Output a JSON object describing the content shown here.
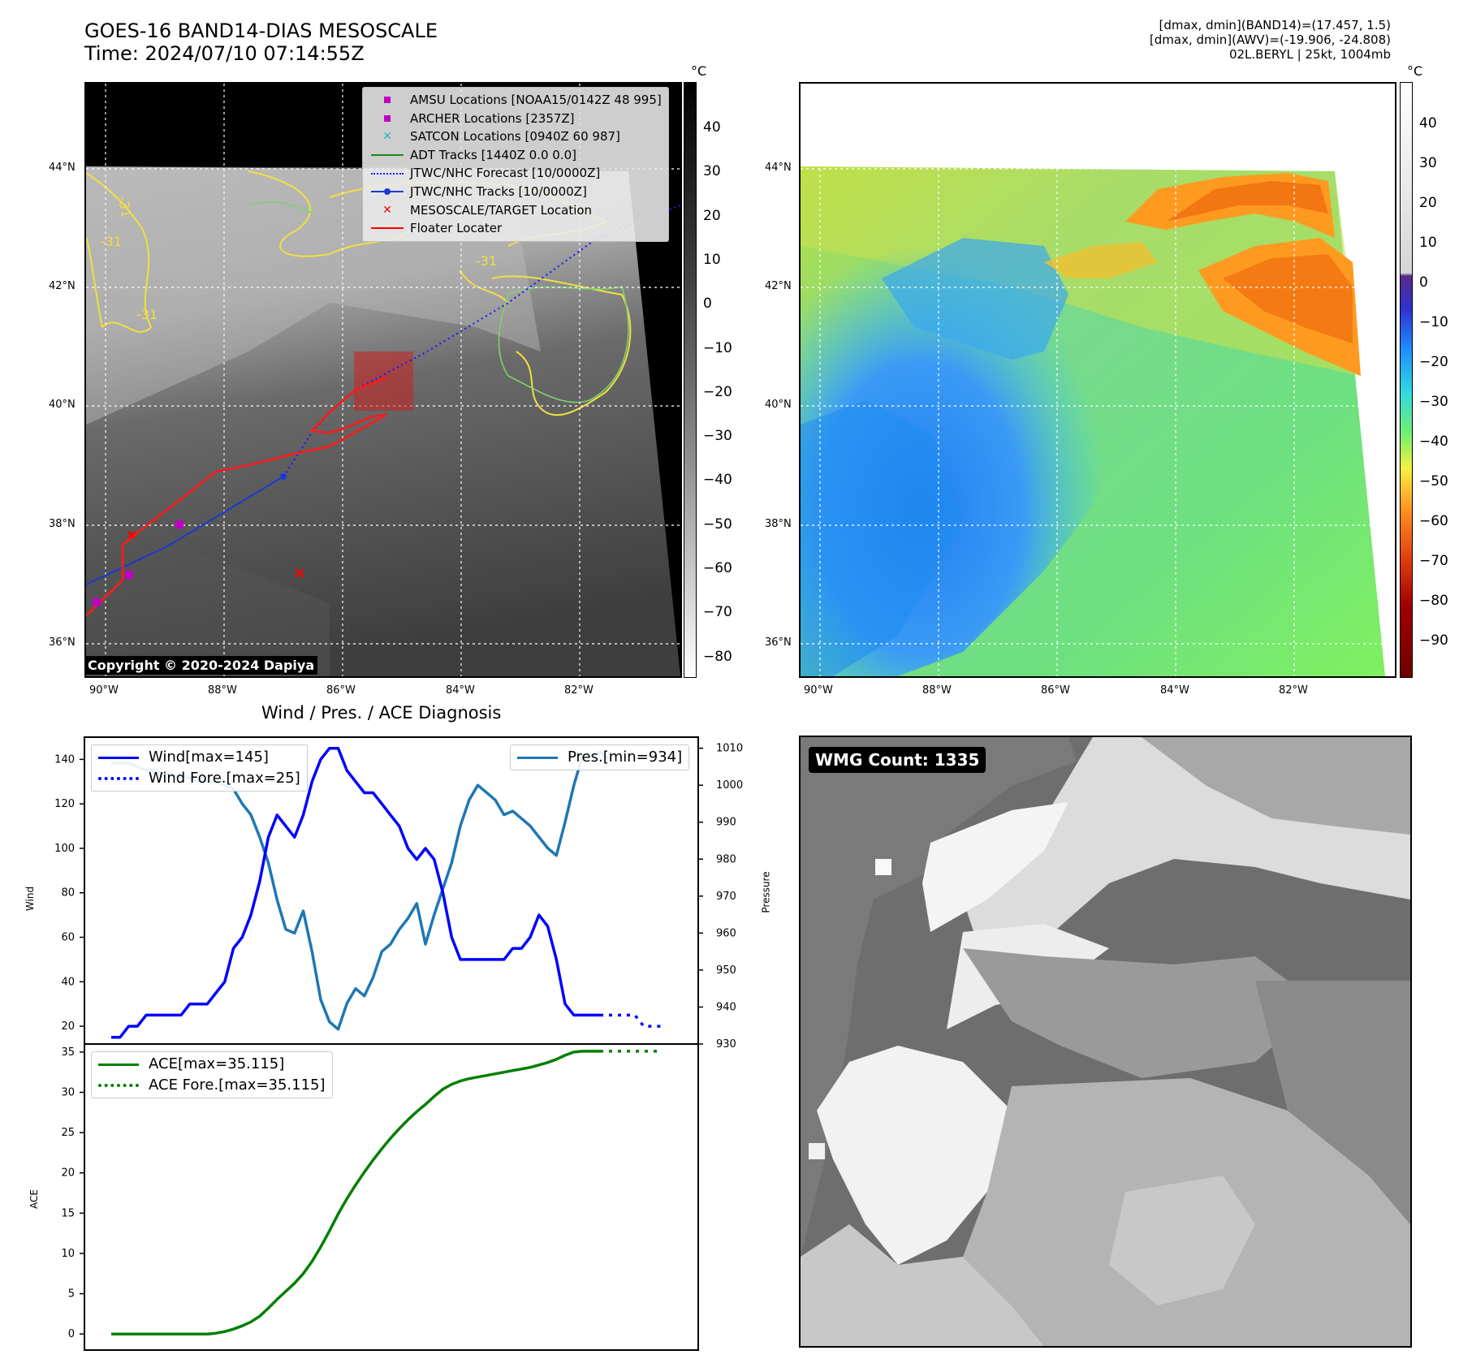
{
  "header": {
    "title_line1": "GOES-16 BAND14-DIAS MESOSCALE",
    "title_line2": "Time: 2024/07/10 07:14:55Z",
    "info_line1": "[dmax, dmin](BAND14)=(17.457, 1.5)",
    "info_line2": "[dmax, dmin](AWV)=(-19.906, -24.808)",
    "info_line3": "02L.BERYL | 25kt, 1004mb"
  },
  "map": {
    "lat_labels": [
      "44°N",
      "42°N",
      "40°N",
      "38°N",
      "36°N"
    ],
    "lon_labels": [
      "90°W",
      "88°W",
      "86°W",
      "84°W",
      "82°W"
    ],
    "contour_labels": [
      "-31",
      "-31",
      "-31",
      "-31"
    ],
    "copyright": "Copyright © 2020-2024 Dapiya",
    "colors": {
      "contour": "#f0e040",
      "contour2": "#80d070",
      "track": "#ff1a1a",
      "jtwc": "#0a2bd6",
      "amsu": "#c200c2"
    }
  },
  "legend": {
    "items": [
      {
        "label": "AMSU Locations [NOAA15/0142Z 48 995]",
        "symbol": "square",
        "color": "#c000c0"
      },
      {
        "label": "ARCHER Locations [2357Z]",
        "symbol": "square",
        "color": "#c000c0"
      },
      {
        "label": "SATCON Locations [0940Z 60 987]",
        "symbol": "x",
        "color": "#20b8b8"
      },
      {
        "label": "ADT Tracks [1440Z 0.0 0.0]",
        "symbol": "line",
        "color": "#168a16"
      },
      {
        "label": "JTWC/NHC Forecast [10/0000Z]",
        "symbol": "dotted",
        "color": "#1a1aff"
      },
      {
        "label": "JTWC/NHC Tracks [10/0000Z]",
        "symbol": "line-dot",
        "color": "#1a3ad0"
      },
      {
        "label": "MESOSCALE/TARGET Location",
        "symbol": "x",
        "color": "#ff0000"
      },
      {
        "label": "Floater Locater",
        "symbol": "line",
        "color": "#ff0000"
      }
    ]
  },
  "colorbar1": {
    "unit": "°C",
    "ticks": [
      "40",
      "30",
      "20",
      "10",
      "0",
      "−10",
      "−20",
      "−30",
      "−40",
      "−50",
      "−60",
      "−70",
      "−80"
    ]
  },
  "colorbar2": {
    "unit": "°C",
    "ticks": [
      "40",
      "30",
      "20",
      "10",
      "0",
      "−10",
      "−20",
      "−30",
      "−40",
      "−50",
      "−60",
      "−70",
      "−80",
      "−90"
    ]
  },
  "wmg": {
    "label": "WMG Count: 1335"
  },
  "chart_data": [
    {
      "type": "line",
      "title": "Wind / Pres. / ACE Diagnosis",
      "ylabel": "Wind",
      "ylabel_right": "Pressure",
      "ylim": [
        12,
        150
      ],
      "ylim_right": [
        930,
        1013
      ],
      "yticks": [
        "140",
        "120",
        "100",
        "80",
        "60",
        "40",
        "20"
      ],
      "yticks_right": [
        "1010",
        "1000",
        "990",
        "980",
        "970",
        "960",
        "950",
        "940",
        "930"
      ],
      "series": [
        {
          "name": "Wind[max=145]",
          "color": "#0000ff",
          "style": "solid",
          "values": [
            15,
            15,
            20,
            20,
            25,
            25,
            25,
            25,
            25,
            30,
            30,
            30,
            35,
            40,
            55,
            60,
            70,
            85,
            105,
            115,
            110,
            105,
            115,
            130,
            140,
            145,
            145,
            135,
            130,
            125,
            125,
            120,
            115,
            110,
            100,
            95,
            100,
            95,
            80,
            60,
            50,
            50,
            50,
            50,
            50,
            50,
            55,
            55,
            60,
            70,
            65,
            50,
            30,
            25,
            25,
            25,
            25
          ]
        },
        {
          "name": "Wind Fore.[max=25]",
          "color": "#0000ff",
          "style": "dotted",
          "x_start": 56,
          "values": [
            25,
            25,
            25,
            25,
            25,
            20,
            20,
            20
          ]
        },
        {
          "name": "Pres.[min=934]",
          "color": "#1f77b4",
          "style": "solid",
          "axis": "right",
          "values": [
            1006,
            1006,
            1006,
            1005,
            1004,
            1004,
            1003,
            1003,
            1002,
            1002,
            1001,
            1001,
            1001,
            1000,
            999,
            995,
            992,
            986,
            979,
            969,
            961,
            960,
            966,
            955,
            942,
            936,
            934,
            941,
            945,
            943,
            948,
            955,
            957,
            961,
            964,
            968,
            957,
            965,
            972,
            979,
            989,
            996,
            1000,
            998,
            996,
            992,
            993,
            991,
            989,
            986,
            983,
            981,
            990,
            1000,
            1008,
            1008,
            1009,
            1007
          ]
        }
      ]
    },
    {
      "type": "line",
      "ylabel": "ACE",
      "ylim": [
        -2,
        36
      ],
      "yticks": [
        "35",
        "30",
        "25",
        "20",
        "15",
        "10",
        "5",
        "0"
      ],
      "series": [
        {
          "name": "ACE[max=35.115]",
          "color": "#008000",
          "style": "solid",
          "values": [
            0,
            0,
            0,
            0,
            0,
            0,
            0,
            0,
            0,
            0,
            0,
            0,
            0.1,
            0.3,
            0.6,
            1.0,
            1.5,
            2.2,
            3.2,
            4.3,
            5.3,
            6.3,
            7.5,
            9.0,
            10.8,
            12.8,
            14.9,
            16.8,
            18.5,
            20.1,
            21.6,
            23.0,
            24.3,
            25.5,
            26.6,
            27.6,
            28.5,
            29.5,
            30.4,
            31.0,
            31.4,
            31.7,
            31.9,
            32.1,
            32.3,
            32.5,
            32.7,
            32.9,
            33.1,
            33.4,
            33.7,
            34.1,
            34.6,
            35.0,
            35.1,
            35.1,
            35.1
          ]
        },
        {
          "name": "ACE Fore.[max=35.115]",
          "color": "#008000",
          "style": "dotted",
          "x_start": 56,
          "values": [
            35.1,
            35.1,
            35.1,
            35.1,
            35.1,
            35.1,
            35.1,
            35.1
          ]
        }
      ]
    }
  ]
}
